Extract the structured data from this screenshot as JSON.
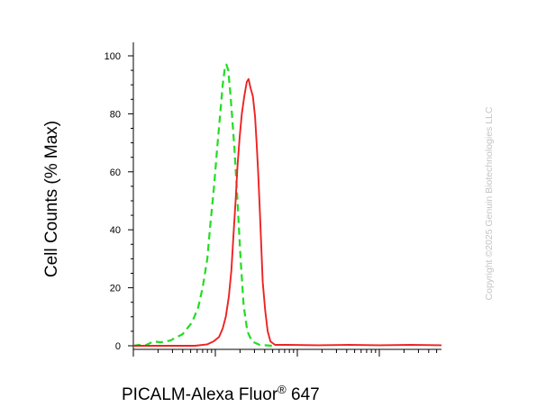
{
  "chart_data": {
    "type": "line",
    "title": "",
    "xlabel_main": "PICALM-Alexa Fluor",
    "xlabel_sup": "®",
    "xlabel_suffix": " 647",
    "ylabel": "Cell Counts (% Max)",
    "x_scale": "log",
    "ylim": [
      0,
      100
    ],
    "yticks": [
      0,
      20,
      40,
      60,
      80,
      100
    ],
    "ytick_labels": [
      "0",
      "20",
      "40",
      "60",
      "80",
      "100"
    ],
    "grid": false,
    "legend": "none",
    "series": [
      {
        "color": "#22dd22",
        "dash": "dashed",
        "points": [
          [
            0.0,
            0
          ],
          [
            0.02,
            0.3
          ],
          [
            0.04,
            0.2
          ],
          [
            0.065,
            1.5
          ],
          [
            0.09,
            1.2
          ],
          [
            0.12,
            1.8
          ],
          [
            0.16,
            4
          ],
          [
            0.19,
            8
          ],
          [
            0.21,
            13
          ],
          [
            0.225,
            20
          ],
          [
            0.24,
            30
          ],
          [
            0.25,
            42
          ],
          [
            0.262,
            55
          ],
          [
            0.272,
            68
          ],
          [
            0.282,
            80
          ],
          [
            0.29,
            90
          ],
          [
            0.296,
            95
          ],
          [
            0.302,
            97
          ],
          [
            0.308,
            95
          ],
          [
            0.314,
            88
          ],
          [
            0.32,
            80
          ],
          [
            0.328,
            68
          ],
          [
            0.338,
            50
          ],
          [
            0.348,
            30
          ],
          [
            0.358,
            14
          ],
          [
            0.37,
            5
          ],
          [
            0.385,
            1.5
          ],
          [
            0.41,
            0.3
          ],
          [
            0.45,
            0
          ]
        ]
      },
      {
        "color": "#ee2222",
        "dash": "solid",
        "points": [
          [
            0.0,
            0
          ],
          [
            0.2,
            0
          ],
          [
            0.24,
            0.5
          ],
          [
            0.26,
            1.5
          ],
          [
            0.278,
            3
          ],
          [
            0.29,
            6
          ],
          [
            0.3,
            10
          ],
          [
            0.31,
            17
          ],
          [
            0.318,
            26
          ],
          [
            0.325,
            38
          ],
          [
            0.332,
            50
          ],
          [
            0.338,
            62
          ],
          [
            0.345,
            72
          ],
          [
            0.352,
            80
          ],
          [
            0.36,
            86
          ],
          [
            0.368,
            91
          ],
          [
            0.374,
            92
          ],
          [
            0.38,
            89
          ],
          [
            0.388,
            86
          ],
          [
            0.395,
            79
          ],
          [
            0.4,
            70
          ],
          [
            0.405,
            60
          ],
          [
            0.41,
            48
          ],
          [
            0.415,
            35
          ],
          [
            0.42,
            22
          ],
          [
            0.428,
            12
          ],
          [
            0.436,
            5
          ],
          [
            0.445,
            1.5
          ],
          [
            0.46,
            0.3
          ],
          [
            0.5,
            0.3
          ],
          [
            0.6,
            0.2
          ],
          [
            0.7,
            0.3
          ],
          [
            0.8,
            0.2
          ],
          [
            0.9,
            0.3
          ],
          [
            1.0,
            0.2
          ]
        ]
      }
    ]
  },
  "watermark": "Copyright ©2025 Genuin Biotechnologies LLC"
}
